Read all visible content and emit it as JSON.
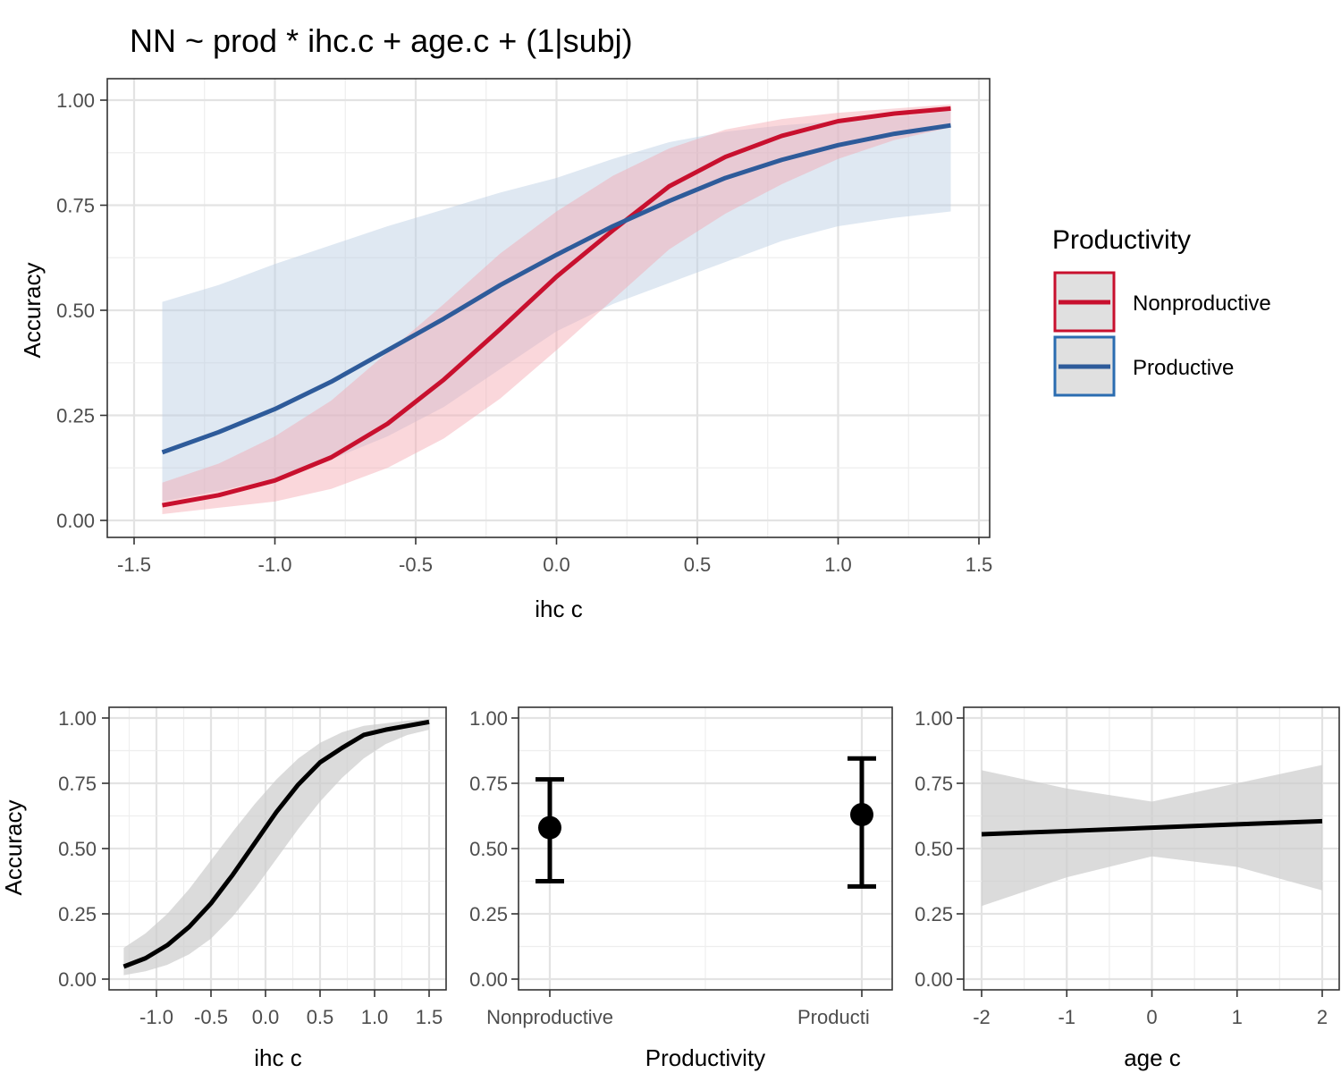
{
  "colors": {
    "nonproductive": "#c8102e",
    "productive": "#2e5b9a",
    "productive_key": "#2b6cb0",
    "ribbon_np": "#f4a6b0",
    "ribbon_p": "#b9cde3",
    "ribbon_grey": "#cccccc",
    "grid_major": "#e3e3e3",
    "grid_minor": "#eeeeee"
  },
  "chart_data": [
    {
      "type": "line",
      "title": "NN ~ prod * ihc.c + age.c + (1|subj)",
      "xlabel": "ihc c",
      "ylabel": "Accuracy",
      "xlim": [
        -1.5,
        1.5
      ],
      "ylim": [
        0,
        1
      ],
      "x_ticks": [
        "-1.5",
        "-1.0",
        "-0.5",
        "0.0",
        "0.5",
        "1.0",
        "1.5"
      ],
      "y_ticks": [
        "0.00",
        "0.25",
        "0.50",
        "0.75",
        "1.00"
      ],
      "grid": true,
      "legend": {
        "title": "Productivity",
        "position": "right"
      },
      "x": [
        -1.4,
        -1.2,
        -1.0,
        -0.8,
        -0.6,
        -0.4,
        -0.2,
        0.0,
        0.2,
        0.4,
        0.6,
        0.8,
        1.0,
        1.2,
        1.4
      ],
      "series": [
        {
          "name": "Nonproductive",
          "values": [
            0.036,
            0.06,
            0.095,
            0.15,
            0.23,
            0.335,
            0.455,
            0.58,
            0.69,
            0.795,
            0.865,
            0.915,
            0.95,
            0.968,
            0.98
          ],
          "lower": [
            0.015,
            0.03,
            0.045,
            0.075,
            0.125,
            0.195,
            0.29,
            0.405,
            0.525,
            0.645,
            0.73,
            0.8,
            0.86,
            0.905,
            0.935
          ],
          "upper": [
            0.09,
            0.135,
            0.2,
            0.285,
            0.4,
            0.515,
            0.635,
            0.735,
            0.82,
            0.885,
            0.93,
            0.955,
            0.97,
            0.98,
            0.99
          ]
        },
        {
          "name": "Productive",
          "values": [
            0.162,
            0.21,
            0.265,
            0.33,
            0.405,
            0.48,
            0.56,
            0.632,
            0.7,
            0.76,
            0.815,
            0.858,
            0.893,
            0.92,
            0.94
          ],
          "lower": [
            0.045,
            0.07,
            0.1,
            0.145,
            0.2,
            0.27,
            0.36,
            0.45,
            0.515,
            0.565,
            0.615,
            0.665,
            0.7,
            0.72,
            0.735
          ],
          "upper": [
            0.52,
            0.56,
            0.61,
            0.655,
            0.7,
            0.74,
            0.78,
            0.815,
            0.86,
            0.9,
            0.925,
            0.94,
            0.95,
            0.96,
            0.975
          ]
        }
      ]
    },
    {
      "type": "line",
      "xlabel": "ihc c",
      "ylabel": "Accuracy",
      "xlim": [
        -1.5,
        1.5
      ],
      "ylim": [
        0,
        1
      ],
      "x_ticks": [
        "-1.0",
        "-0.5",
        "0.0",
        "0.5",
        "1.0",
        "1.5"
      ],
      "y_ticks": [
        "0.00",
        "0.25",
        "0.50",
        "0.75",
        "1.00"
      ],
      "grid": true,
      "x": [
        -1.3,
        -1.1,
        -0.9,
        -0.7,
        -0.5,
        -0.3,
        -0.1,
        0.1,
        0.3,
        0.5,
        0.7,
        0.9,
        1.1,
        1.3,
        1.5
      ],
      "values": [
        0.048,
        0.08,
        0.13,
        0.2,
        0.29,
        0.4,
        0.52,
        0.64,
        0.745,
        0.83,
        0.885,
        0.935,
        0.955,
        0.97,
        0.985
      ],
      "lower": [
        0.015,
        0.03,
        0.055,
        0.095,
        0.155,
        0.24,
        0.345,
        0.46,
        0.575,
        0.68,
        0.77,
        0.845,
        0.9,
        0.935,
        0.955
      ],
      "upper": [
        0.12,
        0.175,
        0.25,
        0.345,
        0.455,
        0.565,
        0.67,
        0.765,
        0.845,
        0.905,
        0.945,
        0.97,
        0.98,
        0.99,
        0.995
      ]
    },
    {
      "type": "scatter",
      "xlabel": "Productivity",
      "ylim": [
        0,
        1
      ],
      "categories": [
        "Nonproductive",
        "Producti"
      ],
      "y_ticks": [
        "0.00",
        "0.25",
        "0.50",
        "0.75",
        "1.00"
      ],
      "grid": true,
      "values": [
        0.58,
        0.63
      ],
      "lower": [
        0.375,
        0.355
      ],
      "upper": [
        0.765,
        0.845
      ]
    },
    {
      "type": "line",
      "xlabel": "age c",
      "xlim": [
        -2.2,
        2.2
      ],
      "ylim": [
        0,
        1
      ],
      "x_ticks": [
        "-2",
        "-1",
        "0",
        "1",
        "2"
      ],
      "y_ticks": [
        "0.00",
        "0.25",
        "0.50",
        "0.75",
        "1.00"
      ],
      "grid": true,
      "x": [
        -2,
        -1,
        0,
        1,
        2
      ],
      "values": [
        0.555,
        0.567,
        0.58,
        0.593,
        0.605
      ],
      "lower": [
        0.28,
        0.39,
        0.47,
        0.43,
        0.34
      ],
      "upper": [
        0.8,
        0.73,
        0.68,
        0.75,
        0.82
      ]
    }
  ]
}
